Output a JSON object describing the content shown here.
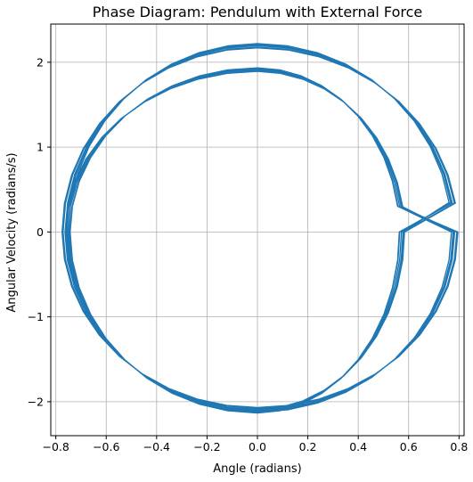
{
  "chart_data": {
    "type": "line",
    "title": "Phase Diagram: Pendulum with External Force",
    "xlabel": "Angle (radians)",
    "ylabel": "Angular Velocity (radians/s)",
    "xlim": [
      -0.82,
      0.82
    ],
    "ylim": [
      -2.4,
      2.45
    ],
    "x_ticks": [
      -0.8,
      -0.6,
      -0.4,
      -0.2,
      0.0,
      0.2,
      0.4,
      0.6,
      0.8
    ],
    "x_tick_labels": [
      "−0.8",
      "−0.6",
      "−0.4",
      "−0.2",
      "0.0",
      "0.2",
      "0.4",
      "0.6",
      "0.8"
    ],
    "y_ticks": [
      -2,
      -1,
      0,
      1,
      2
    ],
    "y_tick_labels": [
      "−2",
      "−1",
      "0",
      "1",
      "2"
    ],
    "grid": true,
    "series_color": "#1f77b4",
    "trajectory": {
      "inner_loop": {
        "max_angle": 0.58,
        "min_angle": -0.76,
        "max_velocity": 1.9,
        "min_velocity": -2.1
      },
      "outer_loop": {
        "max_angle": 0.78,
        "min_angle": -0.76,
        "max_velocity": 2.2,
        "min_velocity": -2.1
      },
      "num_cycles": 12
    }
  }
}
